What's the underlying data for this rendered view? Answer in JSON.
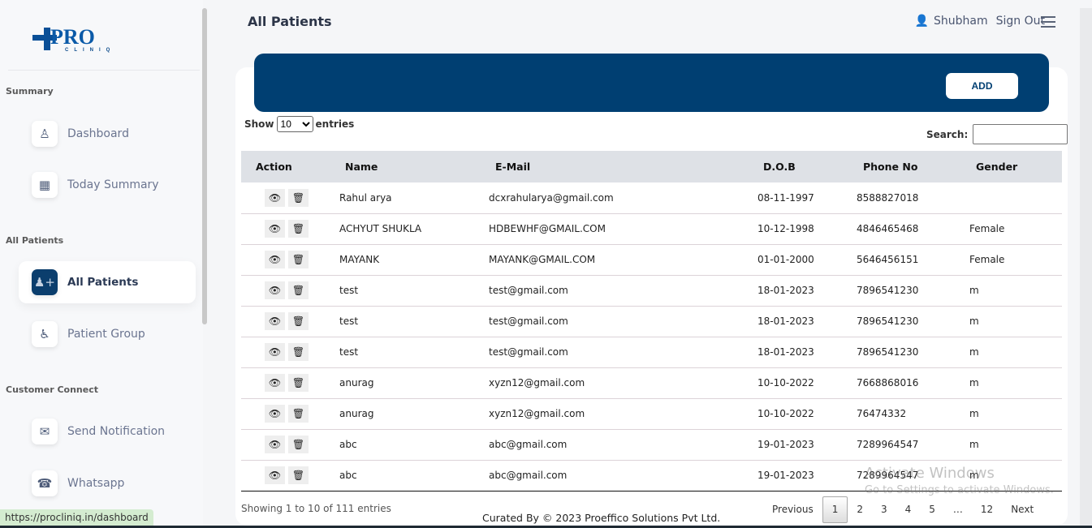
{
  "app": {
    "logo_text": "PRO",
    "logo_sub": "CLINIQ",
    "brand_color": "#003f72"
  },
  "sidebar": {
    "sections": [
      {
        "title": "Summary",
        "items": [
          {
            "label": "Dashboard",
            "icon": "doctor-icon"
          },
          {
            "label": "Today Summary",
            "icon": "hospital-user-icon"
          }
        ]
      },
      {
        "title": "All Patients",
        "items": [
          {
            "label": "All Patients",
            "icon": "user-plus-icon",
            "active": true
          },
          {
            "label": "Patient Group",
            "icon": "wheelchair-icon"
          }
        ]
      },
      {
        "title": "Customer Connect",
        "items": [
          {
            "label": "Send Notification",
            "icon": "envelope-icon"
          },
          {
            "label": "Whatsapp",
            "icon": "whatsapp-icon"
          }
        ]
      }
    ]
  },
  "header": {
    "title": "All Patients",
    "user": "Shubham",
    "sign_out": "Sign Out"
  },
  "toolbar": {
    "add_label": "ADD",
    "show_label": "Show",
    "entries_label": "entries",
    "page_size": "10",
    "search_label": "Search:",
    "search_value": ""
  },
  "table": {
    "columns": [
      "Action",
      "Name",
      "E-Mail",
      "D.O.B",
      "Phone No",
      "Gender"
    ],
    "rows": [
      [
        "Rahul arya",
        "dcxrahularya@gmail.com",
        "08-11-1997",
        "8588827018",
        ""
      ],
      [
        "ACHYUT SHUKLA",
        "HDBEWHF@GMAIL.COM",
        "10-12-1998",
        "4846465468",
        "Female"
      ],
      [
        "MAYANK",
        "MAYANK@GMAIL.COM",
        "01-01-2000",
        "5646456151",
        "Female"
      ],
      [
        "test",
        "test@gmail.com",
        "18-01-2023",
        "7896541230",
        "m"
      ],
      [
        "test",
        "test@gmail.com",
        "18-01-2023",
        "7896541230",
        "m"
      ],
      [
        "test",
        "test@gmail.com",
        "18-01-2023",
        "7896541230",
        "m"
      ],
      [
        "anurag",
        "xyzn12@gmail.com",
        "10-10-2022",
        "7668868016",
        "m"
      ],
      [
        "anurag",
        "xyzn12@gmail.com",
        "10-10-2022",
        "76474332",
        "m"
      ],
      [
        "abc",
        "abc@gmail.com",
        "19-01-2023",
        "7289964547",
        "m"
      ],
      [
        "abc",
        "abc@gmail.com",
        "19-01-2023",
        "7289964547",
        "m"
      ]
    ]
  },
  "footer": {
    "info": "Showing 1 to 10 of 111 entries",
    "curated": "Curated By © 2023 Proeffico Solutions Pvt Ltd.",
    "pagination": {
      "previous": "Previous",
      "pages": [
        "1",
        "2",
        "3",
        "4",
        "5",
        "…",
        "12"
      ],
      "current": "1",
      "next": "Next"
    }
  },
  "watermark": {
    "line1": "Activate Windows",
    "line2": "Go to Settings to activate Windows."
  },
  "status_url": "https://procliniq.in/dashboard"
}
